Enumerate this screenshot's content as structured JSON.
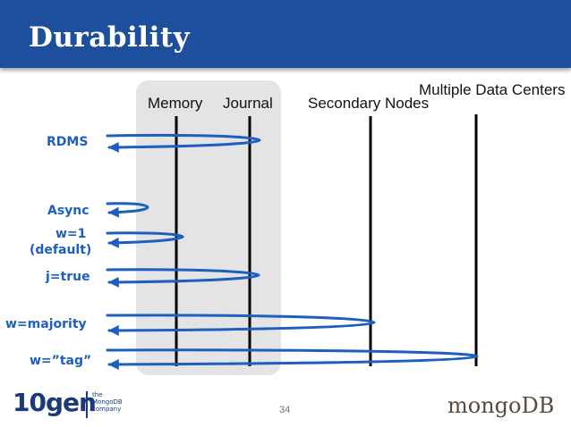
{
  "slide": {
    "title": "Durability",
    "page_number": "34"
  },
  "columns": {
    "memory": "Memory",
    "journal": "Journal",
    "secondary": "Secondary Nodes",
    "datacenters": "Multiple Data Centers"
  },
  "rows": {
    "rdms": "RDMS",
    "async": "Async",
    "w1": "w=1",
    "w1_note": "(default)",
    "jtrue": "j=true",
    "wmajority": "w=majority",
    "wtag": "w=”tag”"
  },
  "branding": {
    "left_logo": "10gen",
    "left_sub_1": "the",
    "left_sub_2": "MongoDB",
    "left_sub_3": "company",
    "right_logo": "mongoDB"
  },
  "colors": {
    "header": "#1e4f9c",
    "arrow": "#1d5fbf",
    "shade": "#e4e4e4"
  }
}
